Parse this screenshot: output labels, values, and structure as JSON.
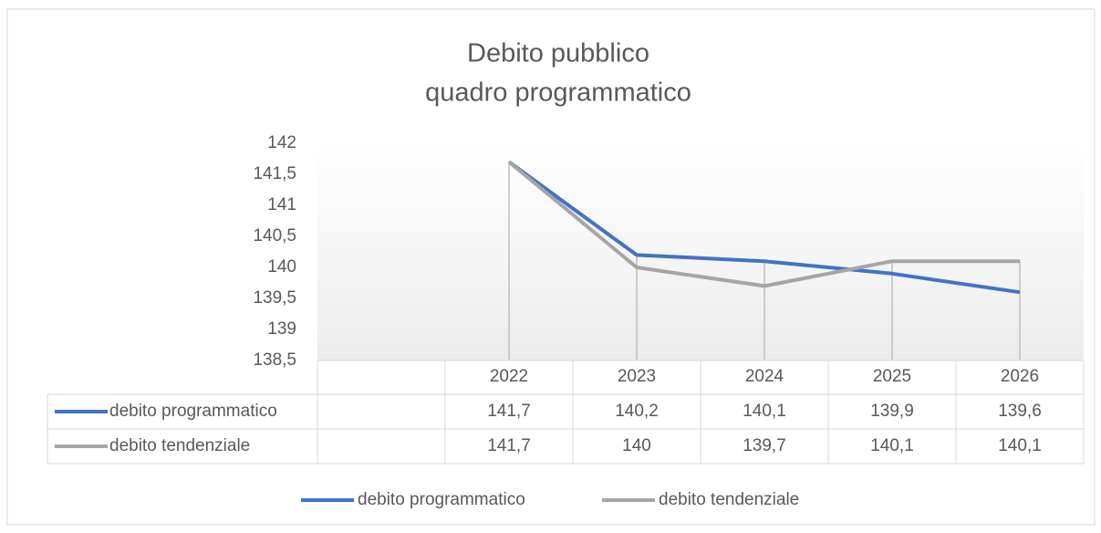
{
  "chart_data": {
    "type": "line",
    "title": [
      "Debito pubblico",
      "quadro programmatico"
    ],
    "categories": [
      "2022",
      "2023",
      "2024",
      "2025",
      "2026"
    ],
    "series": [
      {
        "name": "debito programmatico",
        "color": "#4472c4",
        "values": [
          141.7,
          140.2,
          140.1,
          139.9,
          139.6
        ],
        "value_labels": [
          "141,7",
          "140,2",
          "140,1",
          "139,9",
          "139,6"
        ]
      },
      {
        "name": "debito tendenziale",
        "color": "#a5a5a5",
        "values": [
          141.7,
          140,
          139.7,
          140.1,
          140.1
        ],
        "value_labels": [
          "141,7",
          "140",
          "139,7",
          "140,1",
          "140,1"
        ]
      }
    ],
    "ylim": [
      138.5,
      142
    ],
    "yticks": [
      {
        "value": 138.5,
        "label": "138,5"
      },
      139,
      {
        "value": 139.5,
        "label": "139,5"
      },
      140,
      {
        "value": 140.5,
        "label": "140,5"
      },
      141,
      {
        "value": 141.5,
        "label": "141,5"
      },
      142
    ],
    "legend": "bottom",
    "data_table": true,
    "drop_lines": true
  }
}
